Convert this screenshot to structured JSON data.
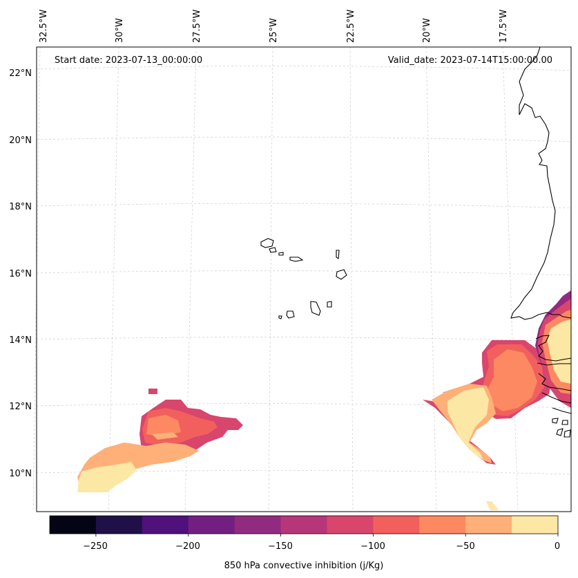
{
  "map": {
    "start_date_label": "Start date: 2023-07-13_00:00:00",
    "valid_date_label": "Valid_date: 2023-07-14T15:00:00.00",
    "lon_labels": [
      "32.5°W",
      "30°W",
      "27.5°W",
      "25°W",
      "22.5°W",
      "20°W",
      "17.5°W"
    ],
    "lat_labels": [
      "22°N",
      "20°N",
      "18°N",
      "16°N",
      "14°N",
      "12°N",
      "10°N"
    ],
    "colors": {
      "coastline": "#000000",
      "gridline": "#cccccc",
      "frame": "#000000"
    }
  },
  "colorbar": {
    "label": "850 hPa convective inhibition (j/Kg)",
    "tick_labels": [
      "−250",
      "−200",
      "−150",
      "−100",
      "−50",
      "0"
    ],
    "levels": [
      -275,
      -250,
      -225,
      -200,
      -175,
      -150,
      -125,
      -100,
      -75,
      -50,
      -25,
      0
    ],
    "colors": [
      "#050417",
      "#1f1147",
      "#4f117b",
      "#721f81",
      "#912b80",
      "#b63679",
      "#d8466d",
      "#f1605d",
      "#fc8961",
      "#feb078",
      "#fde7a5"
    ]
  }
}
